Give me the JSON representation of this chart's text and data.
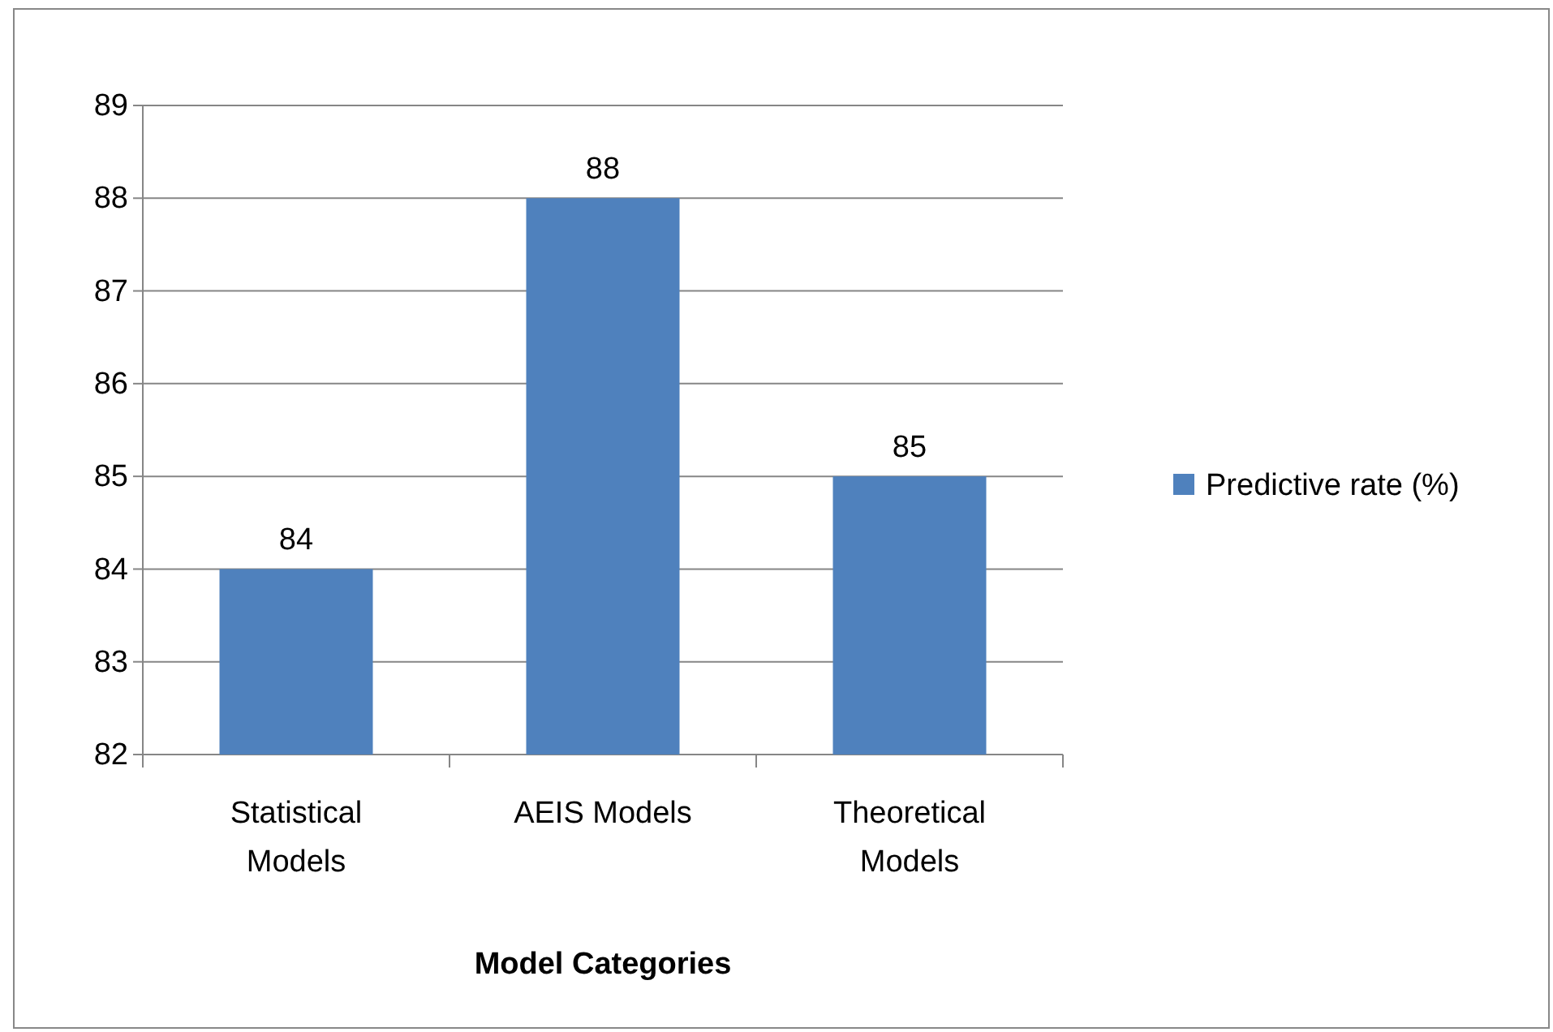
{
  "chart_data": {
    "type": "bar",
    "xlabel": "Model Categories",
    "categories": [
      "Statistical Models",
      "AEIS Models",
      "Theoretical Models"
    ],
    "series": [
      {
        "name": "Predictive rate (%)",
        "color": "#4f81bd",
        "values": [
          84,
          88,
          85
        ]
      }
    ],
    "ylim": [
      82,
      89
    ],
    "yticks": [
      82,
      83,
      84,
      85,
      86,
      87,
      88,
      89
    ],
    "grid": "y",
    "legend": "right",
    "data_labels": true
  }
}
